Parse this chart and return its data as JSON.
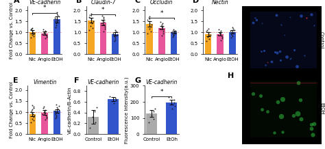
{
  "panels": {
    "A": {
      "title": "VE-cadherin",
      "categories": [
        "Nic",
        "Angio",
        "EtOH"
      ],
      "bar_values": [
        1.02,
        0.95,
        1.6
      ],
      "bar_errors": [
        0.08,
        0.08,
        0.14
      ],
      "bar_colors": [
        "#F5A623",
        "#E8559A",
        "#3355CC"
      ],
      "ylabel": "Fold Change vs. Control",
      "ylim": [
        0.0,
        2.2
      ],
      "yticks": [
        0.0,
        0.5,
        1.0,
        1.5,
        2.0
      ],
      "dashed_line": 1.0,
      "sig_pairs": [
        [
          0,
          2
        ]
      ],
      "sig_labels": [
        "*"
      ],
      "scatter": {
        "Nic": [
          0.75,
          0.82,
          0.88,
          0.92,
          0.98,
          1.02,
          1.06,
          1.12,
          1.16,
          1.2
        ],
        "Angio": [
          0.72,
          0.78,
          0.84,
          0.88,
          0.92,
          0.96,
          0.98,
          1.02,
          1.06,
          1.12
        ],
        "EtOH": [
          1.22,
          1.32,
          1.4,
          1.5,
          1.55,
          1.6,
          1.65,
          1.72,
          1.8,
          1.9
        ]
      }
    },
    "B": {
      "title": "Claudin-7",
      "categories": [
        "Nic",
        "Angio",
        "EtOH"
      ],
      "bar_values": [
        1.55,
        1.44,
        0.92
      ],
      "bar_errors": [
        0.12,
        0.13,
        0.08
      ],
      "bar_colors": [
        "#F5A623",
        "#E8559A",
        "#3355CC"
      ],
      "ylabel": "Fold Change vs. Control",
      "ylim": [
        0.0,
        2.2
      ],
      "yticks": [
        0.0,
        0.5,
        1.0,
        1.5,
        2.0
      ],
      "dashed_line": 1.0,
      "sig_pairs": [
        [
          0,
          2
        ]
      ],
      "sig_labels": [
        "*"
      ],
      "scatter": {
        "Nic": [
          1.1,
          1.2,
          1.3,
          1.4,
          1.5,
          1.56,
          1.62,
          1.7,
          1.78,
          1.85
        ],
        "Angio": [
          1.05,
          1.15,
          1.25,
          1.35,
          1.42,
          1.48,
          1.55,
          1.62,
          1.7,
          1.75
        ],
        "EtOH": [
          0.6,
          0.68,
          0.75,
          0.82,
          0.88,
          0.92,
          0.96,
          1.0,
          1.05,
          1.1
        ]
      }
    },
    "C": {
      "title": "Occludin",
      "categories": [
        "Nic",
        "Angio",
        "EtOH"
      ],
      "bar_values": [
        1.38,
        1.2,
        1.0
      ],
      "bar_errors": [
        0.12,
        0.08,
        0.06
      ],
      "bar_colors": [
        "#F5A623",
        "#E8559A",
        "#3355CC"
      ],
      "ylabel": "Fold Change vs. Control",
      "ylim": [
        0.0,
        2.2
      ],
      "yticks": [
        0.0,
        0.5,
        1.0,
        1.5,
        2.0
      ],
      "dashed_line": 1.0,
      "sig_pairs": [
        [
          0,
          2
        ]
      ],
      "sig_labels": [
        "*"
      ],
      "scatter": {
        "Nic": [
          0.95,
          1.05,
          1.15,
          1.25,
          1.35,
          1.42,
          1.5,
          1.58,
          1.65,
          1.72
        ],
        "Angio": [
          0.85,
          0.95,
          1.05,
          1.12,
          1.18,
          1.24,
          1.3,
          1.36,
          1.42,
          1.48
        ],
        "EtOH": [
          0.8,
          0.86,
          0.9,
          0.95,
          0.98,
          1.0,
          1.02,
          1.05,
          1.08,
          1.12
        ]
      }
    },
    "D": {
      "title": "Nectin",
      "categories": [
        "Nic",
        "Angio",
        "EtOH"
      ],
      "bar_values": [
        0.92,
        0.93,
        1.02
      ],
      "bar_errors": [
        0.1,
        0.09,
        0.08
      ],
      "bar_colors": [
        "#F5A623",
        "#E8559A",
        "#3355CC"
      ],
      "ylabel": "Fold Change vs. Control",
      "ylim": [
        0.0,
        2.2
      ],
      "yticks": [
        0.0,
        0.5,
        1.0,
        1.5,
        2.0
      ],
      "dashed_line": 1.0,
      "sig_pairs": [],
      "sig_labels": [],
      "scatter": {
        "Nic": [
          0.62,
          0.7,
          0.78,
          0.85,
          0.9,
          0.96,
          1.0,
          1.05,
          1.1,
          1.18
        ],
        "Angio": [
          0.65,
          0.72,
          0.78,
          0.85,
          0.9,
          0.95,
          0.98,
          1.02,
          1.08,
          1.14
        ],
        "EtOH": [
          0.75,
          0.82,
          0.88,
          0.95,
          1.0,
          1.02,
          1.06,
          1.1,
          1.16,
          1.22
        ]
      }
    },
    "E": {
      "title": "Vimentin",
      "categories": [
        "Nic",
        "Angio",
        "EtOH"
      ],
      "bar_values": [
        0.9,
        0.98,
        1.05
      ],
      "bar_errors": [
        0.1,
        0.1,
        0.08
      ],
      "bar_colors": [
        "#F5A623",
        "#E8559A",
        "#3355CC"
      ],
      "ylabel": "Fold Change vs. Control",
      "ylim": [
        0.0,
        2.2
      ],
      "yticks": [
        0.0,
        0.5,
        1.0,
        1.5,
        2.0
      ],
      "dashed_line": 1.0,
      "sig_pairs": [],
      "sig_labels": [],
      "scatter": {
        "Nic": [
          0.55,
          0.63,
          0.7,
          0.78,
          0.84,
          0.9,
          0.95,
          1.0,
          1.06,
          1.12,
          1.18,
          1.25,
          1.32
        ],
        "Angio": [
          0.65,
          0.72,
          0.78,
          0.85,
          0.9,
          0.96,
          1.0,
          1.05,
          1.1,
          1.18,
          1.25
        ],
        "EtOH": [
          0.72,
          0.78,
          0.85,
          0.9,
          0.96,
          1.0,
          1.05,
          1.1,
          1.16,
          1.22,
          1.28,
          1.35
        ]
      }
    },
    "F": {
      "title": "VE-cadherin",
      "categories": [
        "Control",
        "EtOH"
      ],
      "bar_values": [
        0.32,
        0.65
      ],
      "bar_errors": [
        0.13,
        0.04
      ],
      "bar_colors": [
        "#AAAAAA",
        "#3355CC"
      ],
      "ylabel": "VE-cadherin/B-Actin",
      "ylim": [
        0.0,
        0.9
      ],
      "yticks": [
        0.0,
        0.2,
        0.4,
        0.6,
        0.8
      ],
      "dashed_line": null,
      "sig_pairs": [],
      "sig_labels": [],
      "scatter": {
        "Control": [
          0.12,
          0.22,
          0.32,
          0.42,
          0.5
        ],
        "EtOH": [
          0.58,
          0.62,
          0.65,
          0.68,
          0.7
        ]
      }
    },
    "G": {
      "title": "VE-cadherin",
      "categories": [
        "Control",
        "EtOh"
      ],
      "bar_values": [
        128,
        198
      ],
      "bar_errors": [
        20,
        15
      ],
      "bar_colors": [
        "#AAAAAA",
        "#3355CC"
      ],
      "ylabel": "Fluorescence Intensity(a.u.)",
      "ylim": [
        0,
        300
      ],
      "yticks": [
        0,
        100,
        200,
        300
      ],
      "dashed_line": null,
      "sig_pairs": [
        [
          0,
          1
        ]
      ],
      "sig_labels": [
        "*"
      ],
      "scatter": {
        "Control": [
          75,
          95,
          115,
          140,
          158
        ],
        "EtOh": [
          158,
          175,
          195,
          212,
          228
        ]
      }
    }
  },
  "bg_color": "#ffffff",
  "scatter_color": "#1a1a1a",
  "bar_width": 0.55,
  "capsize": 2,
  "lf": 6.5,
  "tf": 5.5,
  "tickf": 5.0,
  "ylabelf": 5.0,
  "plf": 8
}
